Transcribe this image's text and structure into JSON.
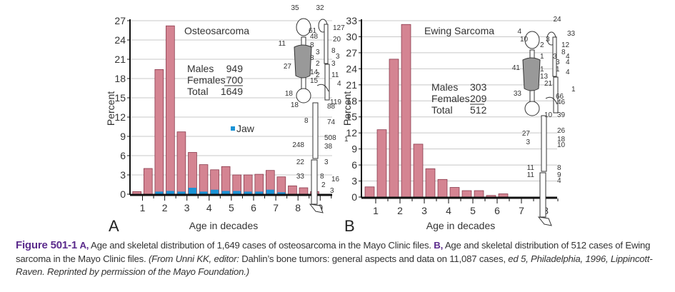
{
  "colors": {
    "bar": "#d48492",
    "bar_edge": "#8a3a4c",
    "jaw": "#1a93d6",
    "grid": "#c8c8c8",
    "axis": "#111111",
    "caption_accent": "#5b2b8c"
  },
  "chart_data": [
    {
      "type": "bar",
      "panel": "A",
      "title": "Osteosarcoma",
      "xlabel": "Age in decades",
      "ylabel": "Percent",
      "ylim": [
        0,
        27
      ],
      "yticks": [
        "0",
        "3",
        "6",
        "9",
        "12",
        "15",
        "18",
        "21",
        "24",
        "27"
      ],
      "xticks": [
        "1",
        "2",
        "3",
        "4",
        "5",
        "6",
        "7",
        "8",
        "9"
      ],
      "grid": true,
      "bin_width_decades": 0.5,
      "x": [
        0.5,
        1.0,
        1.5,
        2.0,
        2.5,
        3.0,
        3.5,
        4.0,
        4.5,
        5.0,
        5.5,
        6.0,
        6.5,
        7.0,
        7.5,
        8.0,
        8.5
      ],
      "series": [
        {
          "name": "All",
          "values": [
            0.4,
            4.0,
            19.4,
            26.2,
            9.7,
            6.5,
            4.6,
            3.8,
            4.3,
            3.0,
            3.0,
            3.1,
            3.7,
            2.7,
            1.3,
            1.0,
            0.4
          ]
        },
        {
          "name": "Jaw",
          "values": [
            0,
            0,
            0.4,
            0.5,
            0.4,
            1.0,
            0.4,
            0.7,
            0.5,
            0.5,
            0.4,
            0.4,
            0.7,
            0.3,
            0,
            0,
            0
          ]
        }
      ],
      "legend": [
        {
          "label": "Jaw",
          "placement": "center-right"
        }
      ],
      "stats": {
        "rows": [
          {
            "label": "Males",
            "value": "949"
          },
          {
            "label": "Females",
            "value": "700"
          },
          {
            "label": "Total",
            "value": "1649"
          }
        ]
      },
      "skeleton_labels": [
        "35",
        "32",
        "127",
        "61",
        "48",
        "20",
        "11",
        "8",
        "3",
        "8",
        "3",
        "8",
        "2",
        "3",
        "27",
        "14",
        "2",
        "11",
        "15",
        "4",
        "18",
        "119",
        "18",
        "88",
        "8",
        "74",
        "508",
        "1",
        "248",
        "38",
        "22",
        "3",
        "33",
        "8",
        "16",
        "2",
        "3"
      ]
    },
    {
      "type": "bar",
      "panel": "B",
      "title": "Ewing Sarcoma",
      "xlabel": "Age in decades",
      "ylabel": "Percent",
      "ylim": [
        0,
        33
      ],
      "yticks": [
        "0",
        "3",
        "6",
        "9",
        "12",
        "15",
        "18",
        "21",
        "24",
        "27",
        "30",
        "33"
      ],
      "xticks": [
        "1",
        "2",
        "3",
        "4",
        "5",
        "6",
        "7",
        "8"
      ],
      "grid": true,
      "bin_width_decades": 0.5,
      "x": [
        0.5,
        1.0,
        1.5,
        2.0,
        2.5,
        3.0,
        3.5,
        4.0,
        4.5,
        5.0,
        5.5,
        6.0
      ],
      "series": [
        {
          "name": "All",
          "values": [
            1.9,
            12.6,
            25.8,
            32.3,
            9.9,
            5.3,
            3.3,
            1.8,
            1.2,
            1.2,
            0.3,
            0.6
          ]
        }
      ],
      "stats": {
        "rows": [
          {
            "label": "Males",
            "value": "303"
          },
          {
            "label": "Females",
            "value": "209"
          },
          {
            "label": "Total",
            "value": "512"
          }
        ]
      },
      "skeleton_labels": [
        "24",
        "4",
        "33",
        "10",
        "3",
        "12",
        "2",
        "8",
        "3",
        "4",
        "1",
        "4",
        "3",
        "41",
        "1",
        "1",
        "4",
        "13",
        "21",
        "1",
        "33",
        "66",
        "46",
        "10",
        "39",
        "26",
        "27",
        "18",
        "3",
        "10",
        "11",
        "8",
        "11",
        "9",
        "4"
      ]
    }
  ],
  "caption": {
    "figure_label": "Figure 501-1",
    "part_a_ref": "A,",
    "part_a_text": " Age and skeletal distribution of 1,649 cases of osteosarcoma in the Mayo Clinic files. ",
    "part_b_ref": "B,",
    "part_b_text": " Age and skeletal distribution of 512 cases of Ewing sarcoma in the Mayo Clinic files. ",
    "source_italic_1": "(From Unni KK, editor:",
    "source_plain": " Dahlin’s bone tumors: general aspects and data on 11,087 cases, ",
    "source_italic_2": "ed 5, Philadelphia, 1996, Lippincott-Raven. Reprinted by permission of the Mayo Foundation.)"
  }
}
